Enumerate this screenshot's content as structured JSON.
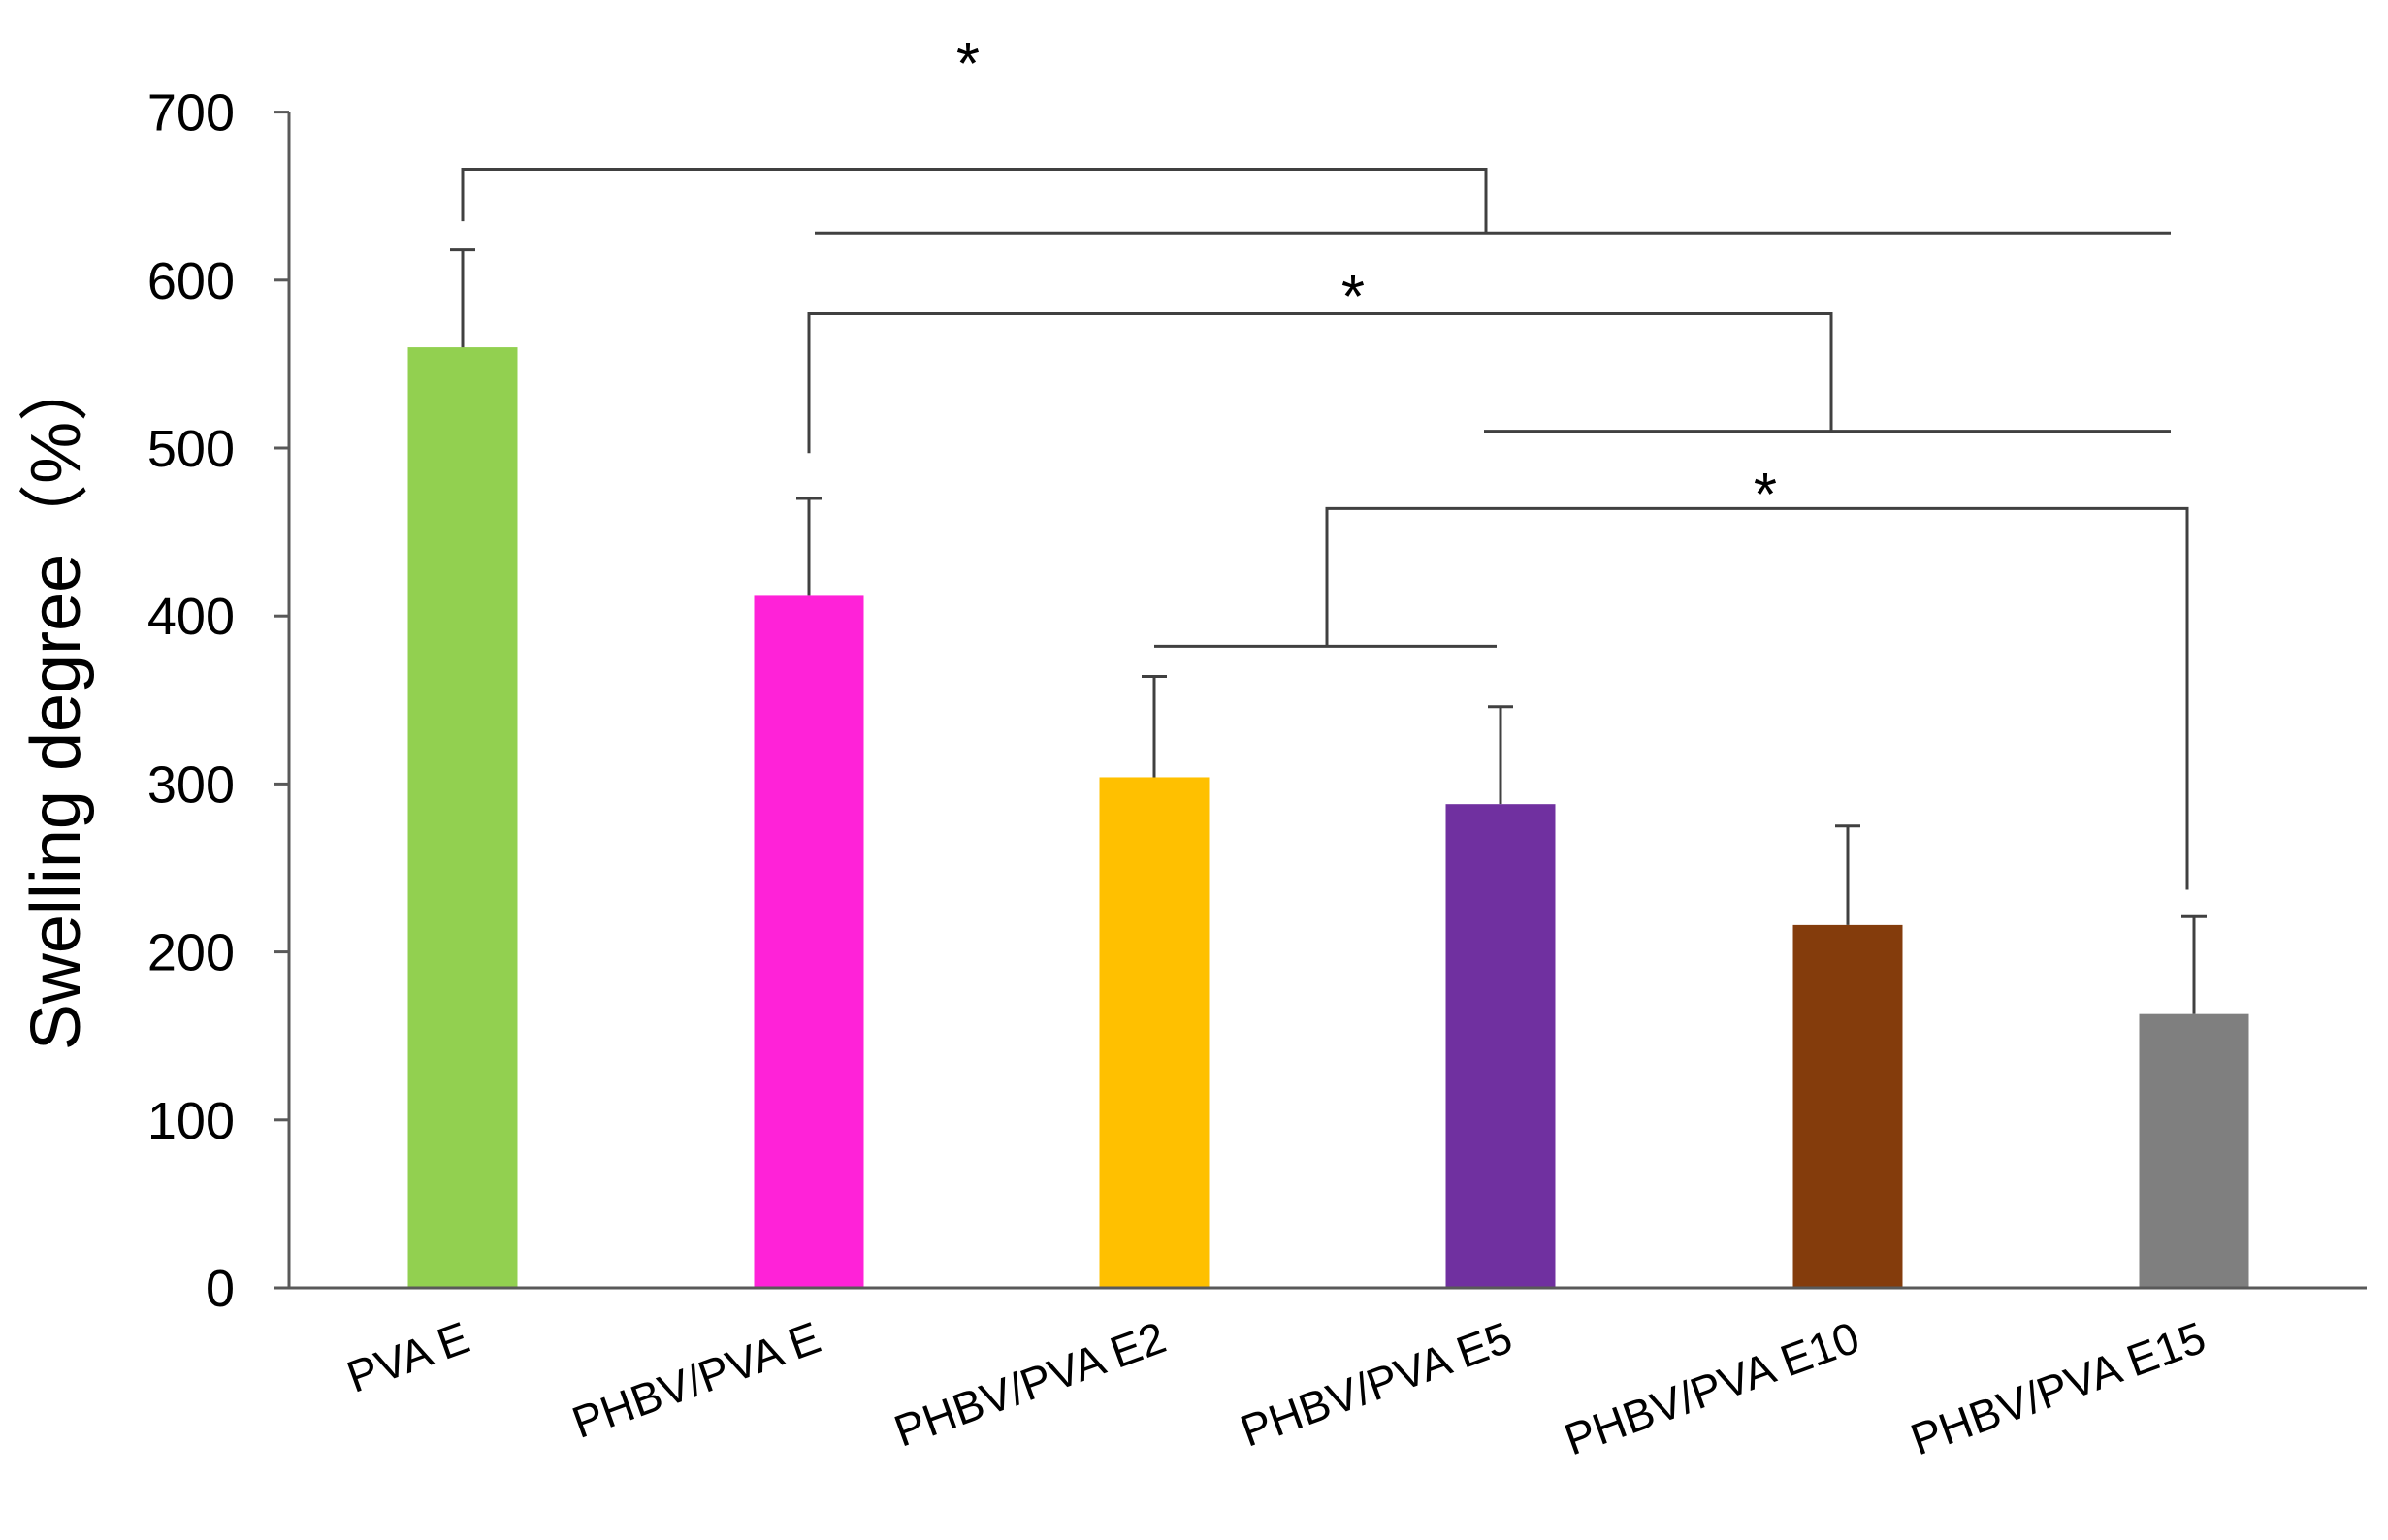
{
  "chart_data": {
    "type": "bar",
    "title": "",
    "xlabel": "",
    "ylabel": "Swelling degree（%）",
    "ylim": [
      0,
      700
    ],
    "yticks": [
      0,
      100,
      200,
      300,
      400,
      500,
      600,
      700
    ],
    "grid": false,
    "categories": [
      "PVA E",
      "PHBV/PVA E",
      "PHBV/PVA E2",
      "PHBV/PVA E5",
      "PHBV/PVA E10",
      "PHBV/PVA E15"
    ],
    "values": [
      560,
      412,
      304,
      288,
      216,
      163
    ],
    "errors": [
      58,
      58,
      60,
      58,
      59,
      58
    ],
    "colors": [
      "#92d050",
      "#ff22d8",
      "#ffc000",
      "#7030a0",
      "#843c0c",
      "#7f7f7f"
    ],
    "significance": [
      {
        "label": "*",
        "from": "PVA E",
        "to": [
          "PHBV/PVA E",
          "PHBV/PVA E2",
          "PHBV/PVA E5",
          "PHBV/PVA E10",
          "PHBV/PVA E15"
        ]
      },
      {
        "label": "*",
        "from": "PHBV/PVA E",
        "to": [
          "PHBV/PVA E5",
          "PHBV/PVA E10",
          "PHBV/PVA E15"
        ]
      },
      {
        "label": "*",
        "from": [
          "PHBV/PVA E2",
          "PHBV/PVA E5"
        ],
        "to": "PHBV/PVA E15"
      }
    ]
  }
}
